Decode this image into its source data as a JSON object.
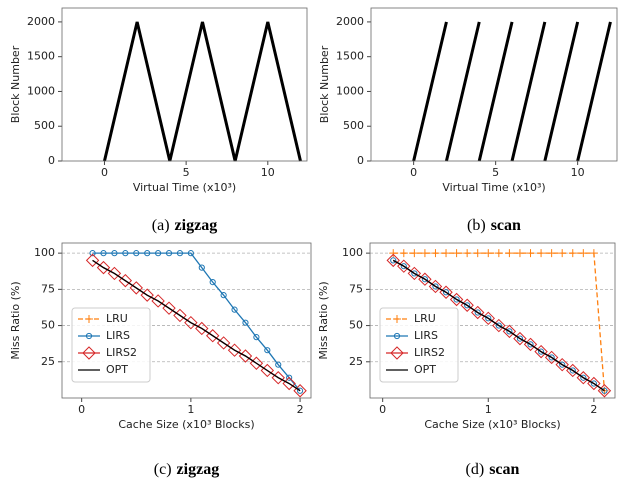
{
  "chart_data": [
    {
      "type": "line",
      "caption_label": "(a)",
      "caption_name": "zigzag",
      "xlabel": "Virtual Time (x10³)",
      "ylabel": "Block Number",
      "x": [
        0,
        2,
        4,
        6,
        8,
        10,
        12
      ],
      "values": [
        0,
        2000,
        0,
        2000,
        0,
        2000,
        0
      ],
      "color": "#000000",
      "xlim": [
        -2.6,
        12.4
      ],
      "ylim": [
        0,
        2200
      ],
      "xticks": [
        0,
        5,
        10
      ],
      "yticks": [
        0,
        500,
        1000,
        1500,
        2000
      ],
      "grid": false
    },
    {
      "type": "line",
      "caption_label": "(b)",
      "caption_name": "scan",
      "xlabel": "Virtual Time (x10³)",
      "ylabel": "Block Number",
      "x": [
        0,
        2,
        2,
        2,
        4,
        4,
        4,
        6,
        6,
        6,
        8,
        8,
        8,
        10,
        10,
        10,
        12
      ],
      "values": [
        0,
        2000,
        null,
        0,
        2000,
        null,
        0,
        2000,
        null,
        0,
        2000,
        null,
        0,
        2000,
        null,
        0,
        2000
      ],
      "color": "#000000",
      "xlim": [
        -2.6,
        12.4
      ],
      "ylim": [
        0,
        2200
      ],
      "xticks": [
        0,
        5,
        10
      ],
      "yticks": [
        0,
        500,
        1000,
        1500,
        2000
      ],
      "grid": false
    },
    {
      "type": "line",
      "caption_label": "(c)",
      "caption_name": "zigzag",
      "xlabel": "Cache Size (x10³ Blocks)",
      "ylabel": "Miss Ratio (%)",
      "x": [
        0.1,
        0.2,
        0.3,
        0.4,
        0.5,
        0.6,
        0.7,
        0.8,
        0.9,
        1.0,
        1.1,
        1.2,
        1.3,
        1.4,
        1.5,
        1.6,
        1.7,
        1.8,
        1.9,
        2.0
      ],
      "series": [
        {
          "name": "LRU",
          "color": "#ff7f0e",
          "dash": true,
          "marker": "+",
          "values": [
            null,
            null,
            null,
            null,
            null,
            null,
            null,
            null,
            null,
            null,
            null,
            null,
            null,
            null,
            null,
            null,
            null,
            null,
            null,
            null
          ]
        },
        {
          "name": "LIRS",
          "color": "#1f77b4",
          "dash": false,
          "marker": "o",
          "values": [
            100,
            100,
            100,
            100,
            100,
            100,
            100,
            100,
            100,
            100,
            90,
            80,
            71,
            61,
            52,
            42,
            33,
            23,
            14,
            5
          ]
        },
        {
          "name": "LIRS2",
          "color": "#d62728",
          "dash": false,
          "marker": "D",
          "values": [
            95,
            90,
            86,
            81,
            76,
            71,
            67,
            62,
            57,
            52,
            48,
            43,
            38,
            33,
            29,
            24,
            19,
            14,
            10,
            5
          ]
        },
        {
          "name": "OPT",
          "color": "#000000",
          "dash": false,
          "marker": null,
          "values": [
            95,
            90,
            86,
            81,
            76,
            71,
            67,
            62,
            57,
            52,
            48,
            43,
            38,
            33,
            29,
            24,
            19,
            14,
            10,
            5
          ]
        }
      ],
      "xlim": [
        -0.18,
        2.1
      ],
      "ylim": [
        0,
        107
      ],
      "xticks": [
        0,
        1,
        2
      ],
      "yticks": [
        25,
        50,
        75,
        100
      ],
      "grid": true,
      "legend": "lower left"
    },
    {
      "type": "line",
      "caption_label": "(d)",
      "caption_name": "scan",
      "xlabel": "Cache Size (x10³ Blocks)",
      "ylabel": "Miss Ratio (%)",
      "x": [
        0.1,
        0.2,
        0.3,
        0.4,
        0.5,
        0.6,
        0.7,
        0.8,
        0.9,
        1.0,
        1.1,
        1.2,
        1.3,
        1.4,
        1.5,
        1.6,
        1.7,
        1.8,
        1.9,
        2.0,
        2.1
      ],
      "series": [
        {
          "name": "LRU",
          "color": "#ff7f0e",
          "dash": true,
          "marker": "+",
          "values": [
            100,
            100,
            100,
            100,
            100,
            100,
            100,
            100,
            100,
            100,
            100,
            100,
            100,
            100,
            100,
            100,
            100,
            100,
            100,
            100,
            5
          ]
        },
        {
          "name": "LIRS",
          "color": "#1f77b4",
          "dash": false,
          "marker": "o",
          "values": [
            95,
            91,
            86,
            82,
            77,
            73,
            68,
            64,
            59,
            55,
            50,
            46,
            41,
            37,
            32,
            28,
            23,
            19,
            14,
            10,
            5
          ]
        },
        {
          "name": "LIRS2",
          "color": "#d62728",
          "dash": false,
          "marker": "D",
          "values": [
            95,
            91,
            86,
            82,
            77,
            73,
            68,
            64,
            59,
            55,
            50,
            46,
            41,
            37,
            32,
            28,
            23,
            19,
            14,
            10,
            5
          ]
        },
        {
          "name": "OPT",
          "color": "#000000",
          "dash": false,
          "marker": null,
          "values": [
            95,
            91,
            86,
            82,
            77,
            73,
            68,
            64,
            59,
            55,
            50,
            46,
            41,
            37,
            32,
            28,
            23,
            19,
            14,
            10,
            5
          ]
        }
      ],
      "xlim": [
        -0.12,
        2.2
      ],
      "ylim": [
        0,
        107
      ],
      "xticks": [
        0,
        1,
        2
      ],
      "yticks": [
        25,
        50,
        75,
        100
      ],
      "grid": true,
      "legend": "lower left"
    }
  ]
}
